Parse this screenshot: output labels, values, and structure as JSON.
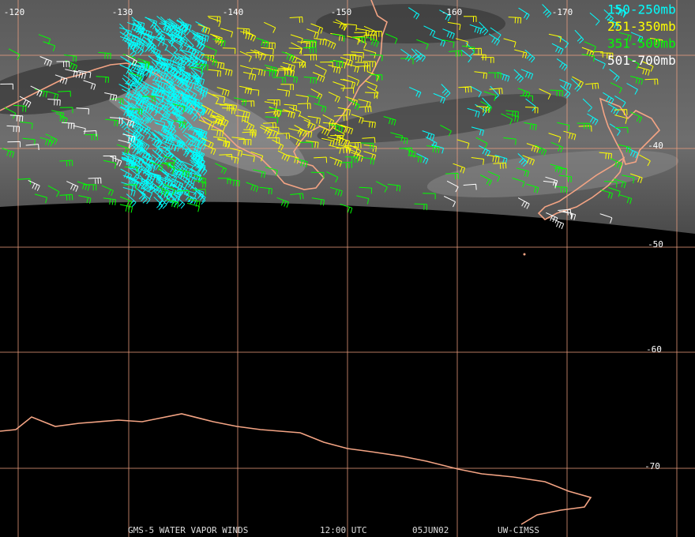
{
  "map": {
    "lon_labels": [
      "-120",
      "-130",
      "-140",
      "-150",
      "-160",
      "-170"
    ],
    "lat_labels": [
      "-40",
      "-50",
      "-60",
      "-70"
    ],
    "legend": [
      {
        "label": "150-250mb",
        "color": "#00ffff"
      },
      {
        "label": "251-350mb",
        "color": "#ffff00"
      },
      {
        "label": "351-500mb",
        "color": "#00ff00"
      },
      {
        "label": "501-700mb",
        "color": "#ffffff"
      }
    ],
    "footer": [
      "GMS-5 WATER VAPOR WINDS",
      "12:00 UTC",
      "05JUN02",
      "UW-CIMSS"
    ]
  }
}
